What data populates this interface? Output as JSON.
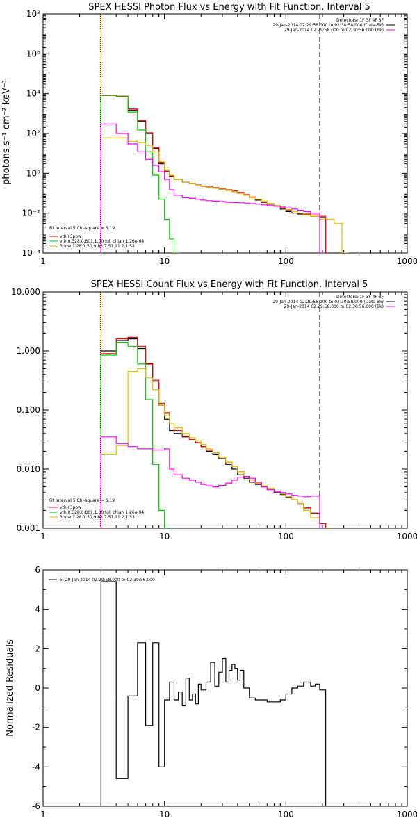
{
  "chart_data": [
    {
      "type": "line",
      "title": "SPEX HESSI Photon Flux vs Energy with Fit Function, Interval 5",
      "ylabel": "photons s⁻¹ cm⁻² keV⁻¹",
      "xlabel": "",
      "xscale": "log",
      "yscale": "log",
      "xlim": [
        1,
        1000
      ],
      "ylim": [
        0.0001,
        100000000
      ],
      "xticks": [
        "1",
        "10",
        "100",
        "1000"
      ],
      "yticks": [
        "10⁻⁴",
        "10⁻²",
        "10⁰",
        "10²",
        "10⁴",
        "10⁶",
        "10⁸"
      ],
      "legend_top": [
        "Detectors: 1F 3F 4F 8F",
        "29-Jan-2014 02:29:58.000 to 02:30:58.000 (Data-Bk)",
        "29-Jan-2014 02:29:58.000 to 02:30:56.000 (Bk)"
      ],
      "legend_bottom": [
        "Fit Interval 5   Chi-square = 3.19",
        "vth+3pow",
        "vth 0.328,0.801,1.00  full chian 1.26e-04",
        "3pow 1.28,1.50,9.83,7.51,11.2,1.53"
      ],
      "vlines": [
        {
          "x": 3,
          "style": "dotted"
        },
        {
          "x": 3,
          "style": "solid-orange"
        },
        {
          "x": 190,
          "style": "dashed"
        }
      ],
      "series": [
        {
          "name": "29-Jan-2014 02:29:58.000 to 02:30:58.000 (Data-Bk)",
          "color": "#000000",
          "x": [
            3,
            4,
            5,
            6,
            7,
            8,
            9,
            10,
            11,
            12,
            14,
            16,
            18,
            20,
            22,
            25,
            28,
            32,
            36,
            40,
            45,
            50,
            56,
            63,
            70,
            80,
            90,
            100,
            112,
            125,
            140,
            160,
            190
          ],
          "y": [
            8000,
            7000,
            1500,
            400,
            100,
            18,
            3,
            1.2,
            0.7,
            0.5,
            0.35,
            0.3,
            0.25,
            0.22,
            0.2,
            0.18,
            0.16,
            0.14,
            0.12,
            0.1,
            0.08,
            0.06,
            0.045,
            0.035,
            0.028,
            0.022,
            0.016,
            0.012,
            0.01,
            0.009,
            0.008,
            0.007,
            0.006
          ]
        },
        {
          "name": "vth+3pow",
          "color": "#ff0000",
          "x": [
            3,
            4,
            5,
            6,
            7,
            8,
            9,
            10,
            11,
            12,
            14,
            16,
            18,
            20,
            22,
            25,
            28,
            32,
            36,
            40,
            45,
            50,
            56,
            63,
            70,
            80,
            90,
            100,
            112,
            125,
            140,
            160,
            190
          ],
          "y": [
            8500,
            7500,
            1700,
            450,
            110,
            20,
            3.5,
            1.3,
            0.75,
            0.5,
            0.36,
            0.3,
            0.26,
            0.23,
            0.21,
            0.19,
            0.17,
            0.15,
            0.13,
            0.11,
            0.085,
            0.065,
            0.05,
            0.038,
            0.03,
            0.024,
            0.018,
            0.014,
            0.012,
            0.01,
            0.009,
            0.008,
            0.007
          ]
        },
        {
          "name": "vth",
          "color": "#00cc00",
          "x": [
            3,
            4,
            5,
            6,
            7,
            8,
            9,
            10,
            11,
            12
          ],
          "y": [
            8000,
            7000,
            1200,
            150,
            12,
            0.8,
            0.05,
            0.005,
            0.0005,
            0.0001
          ]
        },
        {
          "name": "3pow",
          "color": "#e0c000",
          "x": [
            3,
            4,
            5,
            6,
            7,
            8,
            9,
            10,
            11,
            12,
            14,
            16,
            18,
            20,
            22,
            25,
            28,
            32,
            36,
            40,
            45,
            50,
            56,
            63,
            70,
            80,
            90,
            100,
            112,
            125,
            140,
            160,
            190,
            250,
            290
          ],
          "y": [
            60,
            60,
            40,
            35,
            25,
            12,
            4,
            1.5,
            0.8,
            0.5,
            0.35,
            0.3,
            0.25,
            0.22,
            0.2,
            0.18,
            0.16,
            0.14,
            0.12,
            0.1,
            0.08,
            0.06,
            0.05,
            0.04,
            0.03,
            0.024,
            0.019,
            0.015,
            0.012,
            0.01,
            0.008,
            0.007,
            0.005,
            0.003,
            0.0001
          ]
        },
        {
          "name": "29-Jan-2014 02:29:58.000 to 02:30:56.000 (Bk)",
          "color": "#ff00ff",
          "x": [
            3,
            4,
            5,
            6,
            7,
            8,
            9,
            10,
            11,
            12,
            14,
            16,
            18,
            20,
            22,
            25,
            28,
            32,
            36,
            40,
            45,
            50,
            56,
            63,
            70,
            80,
            90,
            100,
            112,
            125,
            140,
            160,
            190
          ],
          "y": [
            300,
            100,
            30,
            12,
            5,
            2.5,
            1.2,
            0.5,
            0.15,
            0.08,
            0.06,
            0.055,
            0.05,
            0.045,
            0.042,
            0.04,
            0.038,
            0.035,
            0.034,
            0.033,
            0.032,
            0.03,
            0.028,
            0.026,
            0.024,
            0.022,
            0.02,
            0.018,
            0.016,
            0.014,
            0.012,
            0.01,
            0.0001
          ]
        }
      ]
    },
    {
      "type": "line",
      "title": "SPEX HESSI Count Flux vs Energy with Fit Function, Interval 5",
      "ylabel": "",
      "xlabel": "",
      "xscale": "log",
      "yscale": "log",
      "xlim": [
        1,
        1000
      ],
      "ylim": [
        0.001,
        10
      ],
      "xticks": [
        "1",
        "10",
        "100",
        "1000"
      ],
      "yticks": [
        "0.001",
        "0.010",
        "0.100",
        "1.000",
        "10.000"
      ],
      "legend_top": [
        "Detectors: 1F 3F 4F 8F",
        "29-Jan-2014 02:29:58.000 to 02:30:58.000 (Data-Bk)",
        "29-Jan-2014 02:29:58.000 to 02:30:56.000 (Bk)"
      ],
      "legend_bottom": [
        "Fit Interval 5   Chi-square = 3.19",
        "vth+3pow",
        "vth 0.328,0.801,1.00  full chian 1.26e-04",
        "3pow 1.28,1.50,9.83,7.51,11.2,1.53"
      ],
      "vlines": [
        {
          "x": 3,
          "style": "dotted"
        },
        {
          "x": 3,
          "style": "solid-orange"
        },
        {
          "x": 190,
          "style": "dashed"
        }
      ],
      "series": [
        {
          "name": "29-Jan-2014 02:29:58.000 to 02:30:58.000 (Data-Bk)",
          "color": "#000000",
          "x": [
            3,
            4,
            5,
            6,
            7,
            8,
            9,
            10,
            11,
            12,
            14,
            16,
            18,
            20,
            22,
            25,
            28,
            32,
            36,
            40,
            45,
            50,
            56,
            63,
            70,
            80,
            90,
            100,
            112,
            125,
            140,
            160,
            190
          ],
          "y": [
            1.0,
            1.5,
            1.6,
            1.1,
            0.6,
            0.3,
            0.12,
            0.07,
            0.045,
            0.04,
            0.035,
            0.032,
            0.028,
            0.024,
            0.02,
            0.018,
            0.015,
            0.012,
            0.01,
            0.008,
            0.007,
            0.006,
            0.0055,
            0.005,
            0.0045,
            0.004,
            0.0037,
            0.0033,
            0.003,
            0.0026,
            0.0022,
            0.0018,
            0.0012
          ]
        },
        {
          "name": "vth+3pow",
          "color": "#ff0000",
          "x": [
            3,
            4,
            5,
            6,
            7,
            8,
            9,
            10,
            11,
            12,
            14,
            16,
            18,
            20,
            22,
            25,
            28,
            32,
            36,
            40,
            45,
            50,
            56,
            63,
            70,
            80,
            90,
            100,
            112,
            125,
            140,
            160,
            190
          ],
          "y": [
            0.9,
            1.6,
            1.7,
            1.2,
            0.62,
            0.32,
            0.13,
            0.09,
            0.06,
            0.045,
            0.036,
            0.032,
            0.028,
            0.024,
            0.021,
            0.019,
            0.016,
            0.013,
            0.011,
            0.009,
            0.0075,
            0.0065,
            0.0058,
            0.0052,
            0.0047,
            0.0042,
            0.0038,
            0.0034,
            0.003,
            0.0026,
            0.0022,
            0.0018,
            0.0012
          ]
        },
        {
          "name": "vth",
          "color": "#00cc00",
          "x": [
            3,
            4,
            5,
            6,
            7,
            8,
            9,
            10
          ],
          "y": [
            0.85,
            1.4,
            1.2,
            0.6,
            0.15,
            0.012,
            0.002,
            0.001
          ]
        },
        {
          "name": "3pow",
          "color": "#e0c000",
          "x": [
            3,
            4,
            5,
            6,
            7,
            8,
            9,
            10,
            11,
            12,
            14,
            16,
            18,
            20,
            22,
            25,
            28,
            32,
            36,
            40,
            45,
            50,
            56,
            63,
            70,
            80,
            90,
            100,
            112,
            125,
            140,
            160,
            190,
            220
          ],
          "y": [
            0.018,
            0.025,
            0.45,
            0.5,
            0.35,
            0.22,
            0.12,
            0.08,
            0.06,
            0.05,
            0.04,
            0.034,
            0.03,
            0.026,
            0.022,
            0.019,
            0.016,
            0.013,
            0.011,
            0.009,
            0.0075,
            0.0065,
            0.0058,
            0.0052,
            0.0047,
            0.0042,
            0.0038,
            0.0034,
            0.003,
            0.0026,
            0.002,
            0.0015,
            0.001,
            0.001
          ]
        },
        {
          "name": "29-Jan-2014 02:29:58.000 to 02:30:56.000 (Bk)",
          "color": "#ff00ff",
          "x": [
            3,
            4,
            5,
            6,
            7,
            8,
            9,
            10,
            11,
            12,
            14,
            16,
            18,
            20,
            22,
            25,
            28,
            32,
            36,
            40,
            45,
            50,
            56,
            63,
            70,
            80,
            90,
            100,
            112,
            125,
            140,
            160,
            190
          ],
          "y": [
            0.035,
            0.027,
            0.024,
            0.022,
            0.022,
            0.021,
            0.021,
            0.022,
            0.01,
            0.008,
            0.007,
            0.0065,
            0.006,
            0.0055,
            0.0052,
            0.005,
            0.0053,
            0.0058,
            0.0065,
            0.0073,
            0.0075,
            0.007,
            0.006,
            0.005,
            0.0045,
            0.0042,
            0.004,
            0.0038,
            0.0036,
            0.0035,
            0.0034,
            0.0035,
            0.001
          ]
        }
      ]
    },
    {
      "type": "line",
      "title": "",
      "ylabel": "Normalized Residuals",
      "xlabel": "",
      "xscale": "log",
      "yscale": "linear",
      "xlim": [
        1,
        1000
      ],
      "ylim": [
        -6,
        6
      ],
      "xticks": [
        "1",
        "10",
        "100",
        "1000"
      ],
      "yticks": [
        "-6",
        "-4",
        "-2",
        "0",
        "2",
        "4",
        "6"
      ],
      "legend": [
        "5, 29-Jan-2014 02:29:58.000 to 02:30:56.000"
      ],
      "series": [
        {
          "name": "5, 29-Jan-2014 02:29:58.000 to 02:30:56.000",
          "color": "#000000",
          "x": [
            3,
            4,
            5,
            6,
            7,
            8,
            9,
            10,
            11,
            12,
            13,
            14,
            15,
            16,
            17,
            18,
            19,
            20,
            22,
            24,
            26,
            28,
            30,
            32,
            34,
            36,
            38,
            40,
            42,
            45,
            50,
            56,
            63,
            70,
            80,
            90,
            100,
            112,
            125,
            140,
            160,
            175,
            190
          ],
          "y": [
            5.4,
            -4.6,
            -0.4,
            2.3,
            -1.9,
            2.3,
            -4.0,
            -0.6,
            0.3,
            -0.6,
            -0.2,
            -0.9,
            0.5,
            -0.6,
            -0.3,
            -0.8,
            0.2,
            -0.1,
            0.3,
            1.3,
            0.1,
            0.8,
            1.5,
            0.3,
            0.9,
            1.2,
            1.0,
            0.4,
            0.9,
            0.0,
            -0.5,
            -0.6,
            -0.6,
            -0.7,
            -0.7,
            -0.6,
            -0.3,
            0.0,
            0.1,
            0.3,
            0.1,
            0.2,
            -0.1
          ]
        }
      ]
    }
  ]
}
